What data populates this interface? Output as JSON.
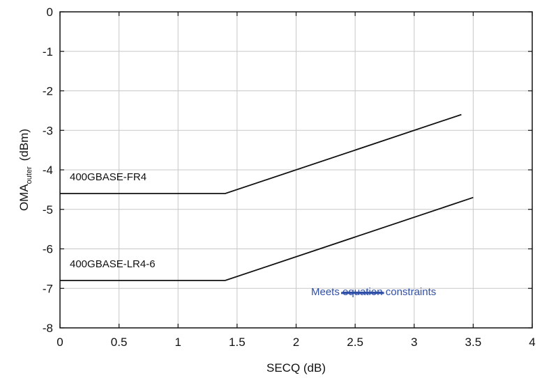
{
  "chart_data": {
    "type": "line",
    "xlabel": "SECQ (dB)",
    "ylabel_main": "OMA",
    "ylabel_sub": "outer",
    "ylabel_unit": "(dBm)",
    "xlim": [
      0,
      4
    ],
    "ylim": [
      -8,
      0
    ],
    "xticks": [
      0,
      0.5,
      1,
      1.5,
      2,
      2.5,
      3,
      3.5,
      4
    ],
    "xtick_labels": [
      "0",
      "0.5",
      "1",
      "1.5",
      "2",
      "2.5",
      "3",
      "3.5",
      "4"
    ],
    "yticks": [
      0,
      -1,
      -2,
      -3,
      -4,
      -5,
      -6,
      -7,
      -8
    ],
    "ytick_labels": [
      "0",
      "-1",
      "-2",
      "-3",
      "-4",
      "-5",
      "-6",
      "-7",
      "-8"
    ],
    "grid": true,
    "series": [
      {
        "name": "400GBASE-FR4",
        "x": [
          0,
          1.4,
          3.4
        ],
        "y": [
          -4.6,
          -4.6,
          -2.6
        ]
      },
      {
        "name": "400GBASE-LR4-6",
        "x": [
          0,
          1.4,
          3.5
        ],
        "y": [
          -6.8,
          -6.8,
          -4.7
        ]
      }
    ],
    "annotation": {
      "prefix": "Meets ",
      "struck": "equation",
      "suffix": " constraints",
      "color": "#2f4fa8"
    },
    "colors": {
      "line": "#111111",
      "grid": "#c8c8c8",
      "axis": "#111111"
    }
  }
}
